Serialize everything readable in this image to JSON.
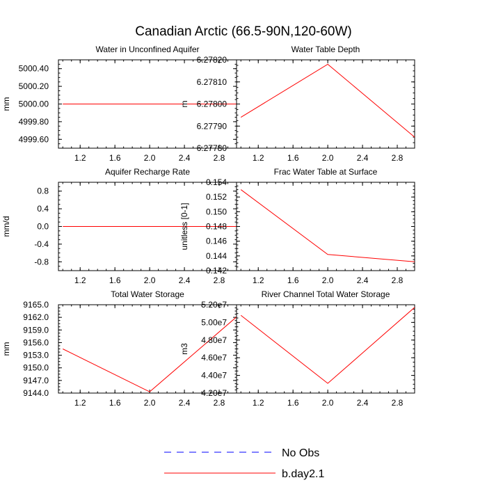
{
  "figure": {
    "title": "Canadian Arctic (66.5-90N,120-60W)",
    "line_color": "#ff0000",
    "obs_color": "#0000ff"
  },
  "legend": {
    "placement": "bottom-center",
    "entries": [
      {
        "label": "No Obs",
        "style": "dashed",
        "color": "#0000ff"
      },
      {
        "label": "b.day2.1",
        "style": "solid",
        "color": "#ff0000"
      }
    ]
  },
  "chart_data": [
    {
      "type": "line",
      "title": "Water in Unconfined Aquifer",
      "ylabel": "mm",
      "xlim": [
        0.95,
        3.0
      ],
      "ylim": [
        4999.5,
        5000.5
      ],
      "xticks": [
        "1.2",
        "1.6",
        "2.0",
        "2.4",
        "2.8"
      ],
      "xtick_values": [
        1.2,
        1.6,
        2.0,
        2.4,
        2.8
      ],
      "yticks": [
        "4999.60",
        "4999.80",
        "5000.00",
        "5000.20",
        "5000.40"
      ],
      "ytick_values": [
        4999.6,
        4999.8,
        5000.0,
        5000.2,
        5000.4
      ],
      "series": [
        {
          "name": "b.day2.1",
          "x": [
            1,
            2,
            3
          ],
          "values": [
            5000.0,
            5000.0,
            5000.0
          ]
        }
      ]
    },
    {
      "type": "line",
      "title": "Water Table Depth",
      "ylabel": "m",
      "xlim": [
        0.95,
        3.0
      ],
      "ylim": [
        6.2778,
        6.2782
      ],
      "xticks": [
        "1.2",
        "1.6",
        "2.0",
        "2.4",
        "2.8"
      ],
      "xtick_values": [
        1.2,
        1.6,
        2.0,
        2.4,
        2.8
      ],
      "yticks": [
        "6.27780",
        "6.27790",
        "6.27800",
        "6.27810",
        "6.27820"
      ],
      "ytick_values": [
        6.2778,
        6.2779,
        6.278,
        6.2781,
        6.2782
      ],
      "series": [
        {
          "name": "b.day2.1",
          "x": [
            1,
            2,
            3
          ],
          "values": [
            6.27794,
            6.27818,
            6.27785
          ]
        }
      ]
    },
    {
      "type": "line",
      "title": "Aquifer Recharge Rate",
      "ylabel": "mm/d",
      "xlim": [
        0.95,
        3.0
      ],
      "ylim": [
        -1.0,
        1.0
      ],
      "xticks": [
        "1.2",
        "1.6",
        "2.0",
        "2.4",
        "2.8"
      ],
      "xtick_values": [
        1.2,
        1.6,
        2.0,
        2.4,
        2.8
      ],
      "yticks": [
        "-0.8",
        "-0.4",
        "0.0",
        "0.4",
        "0.8"
      ],
      "ytick_values": [
        -0.8,
        -0.4,
        0.0,
        0.4,
        0.8
      ],
      "series": [
        {
          "name": "b.day2.1",
          "x": [
            1,
            2,
            3
          ],
          "values": [
            0.0,
            0.0,
            0.0
          ]
        }
      ]
    },
    {
      "type": "line",
      "title": "Frac Water Table at Surface",
      "ylabel": "unitless [0-1]",
      "xlim": [
        0.95,
        3.0
      ],
      "ylim": [
        0.142,
        0.154
      ],
      "xticks": [
        "1.2",
        "1.6",
        "2.0",
        "2.4",
        "2.8"
      ],
      "xtick_values": [
        1.2,
        1.6,
        2.0,
        2.4,
        2.8
      ],
      "yticks": [
        "0.142",
        "0.144",
        "0.146",
        "0.148",
        "0.150",
        "0.152",
        "0.154"
      ],
      "ytick_values": [
        0.142,
        0.144,
        0.146,
        0.148,
        0.15,
        0.152,
        0.154
      ],
      "series": [
        {
          "name": "b.day2.1",
          "x": [
            1,
            2,
            3
          ],
          "values": [
            0.153,
            0.1442,
            0.1432
          ]
        }
      ]
    },
    {
      "type": "line",
      "title": "Total Water Storage",
      "ylabel": "mm",
      "xlim": [
        0.95,
        3.0
      ],
      "ylim": [
        9144.0,
        9165.0
      ],
      "xticks": [
        "1.2",
        "1.6",
        "2.0",
        "2.4",
        "2.8"
      ],
      "xtick_values": [
        1.2,
        1.6,
        2.0,
        2.4,
        2.8
      ],
      "yticks": [
        "9144.0",
        "9147.0",
        "9150.0",
        "9153.0",
        "9156.0",
        "9159.0",
        "9162.0",
        "9165.0"
      ],
      "ytick_values": [
        9144,
        9147,
        9150,
        9153,
        9156,
        9159,
        9162,
        9165
      ],
      "series": [
        {
          "name": "b.day2.1",
          "x": [
            1,
            2,
            3
          ],
          "values": [
            9154.5,
            9144.3,
            9162.1
          ]
        }
      ]
    },
    {
      "type": "line",
      "title": "River Channel Total Water Storage",
      "ylabel": "m3",
      "xlim": [
        0.95,
        3.0
      ],
      "ylim": [
        42000000,
        52000000
      ],
      "xticks": [
        "1.2",
        "1.6",
        "2.0",
        "2.4",
        "2.8"
      ],
      "xtick_values": [
        1.2,
        1.6,
        2.0,
        2.4,
        2.8
      ],
      "yticks": [
        "4.20e7",
        "4.40e7",
        "4.60e7",
        "4.80e7",
        "5.00e7",
        "5.20e7"
      ],
      "ytick_values": [
        42000000,
        44000000,
        46000000,
        48000000,
        50000000,
        52000000
      ],
      "series": [
        {
          "name": "b.day2.1",
          "x": [
            1,
            2,
            3
          ],
          "values": [
            50800000,
            43100000,
            51700000
          ]
        }
      ]
    }
  ]
}
